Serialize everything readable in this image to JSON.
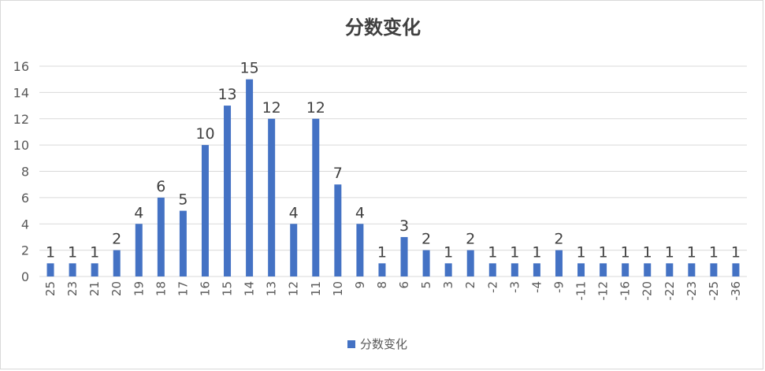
{
  "chart_data": {
    "type": "bar",
    "title": "分数变化",
    "xlabel": "",
    "ylabel": "",
    "ylim": [
      0,
      16
    ],
    "yticks": [
      0,
      2,
      4,
      6,
      8,
      10,
      12,
      14,
      16
    ],
    "grid": true,
    "legend_position": "bottom",
    "color": "#4472C4",
    "categories": [
      "25",
      "23",
      "21",
      "20",
      "19",
      "18",
      "17",
      "16",
      "15",
      "14",
      "13",
      "12",
      "11",
      "10",
      "9",
      "8",
      "6",
      "5",
      "3",
      "2",
      "-2",
      "-3",
      "-4",
      "-9",
      "-11",
      "-12",
      "-16",
      "-20",
      "-22",
      "-23",
      "-25",
      "-36"
    ],
    "series": [
      {
        "name": "分数变化",
        "values": [
          1,
          1,
          1,
          2,
          4,
          6,
          5,
          10,
          13,
          15,
          12,
          4,
          12,
          7,
          4,
          1,
          3,
          2,
          1,
          2,
          1,
          1,
          1,
          2,
          1,
          1,
          1,
          1,
          1,
          1,
          1,
          1
        ]
      }
    ]
  }
}
